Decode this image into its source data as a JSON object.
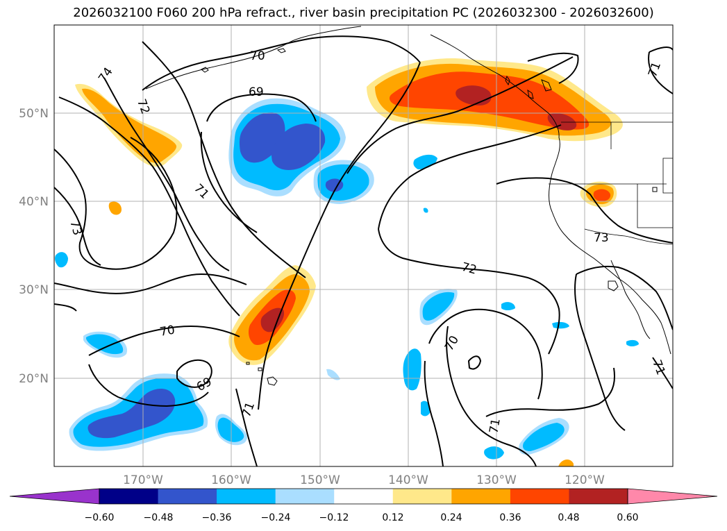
{
  "title": "2026032100 F060 200 hPa refract., river basin precipitation PC (2026032300 - 2026032600)",
  "map": {
    "lat_labels": [
      "50°N",
      "40°N",
      "30°N",
      "20°N"
    ],
    "lon_labels": [
      "170°W",
      "160°W",
      "150°W",
      "140°W",
      "130°W",
      "120°W"
    ],
    "contour_labels": [
      "70",
      "69",
      "74",
      "72",
      "71",
      "73",
      "70",
      "69",
      "71",
      "72",
      "70",
      "71",
      "73",
      "71",
      "71"
    ]
  },
  "colorbar": {
    "colors": [
      "#9933cc",
      "#000088",
      "#3355cc",
      "#00bbff",
      "#aadeff",
      "#ffffff",
      "#ffe88a",
      "#ffa500",
      "#ff4500",
      "#b22222",
      "#ff88aa"
    ],
    "tick_labels": [
      "−0.60",
      "−0.48",
      "−0.36",
      "−0.24",
      "−0.12",
      "0.12",
      "0.24",
      "0.36",
      "0.48",
      "0.60"
    ]
  }
}
